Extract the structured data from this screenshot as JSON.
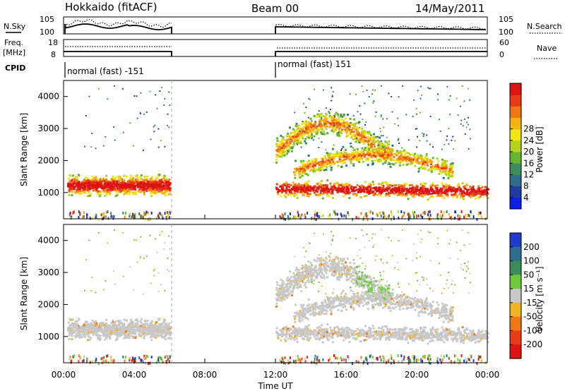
{
  "header": {
    "station": "Hokkaido (fitACF)",
    "beam": "Beam 00",
    "date": "14/May/2011"
  },
  "strip_labels": {
    "nsky": "N.Sky",
    "nsearch": "N.Search",
    "freq_line1": "Freq.",
    "freq_line2": "[MHz]",
    "nave": "Nave",
    "cpid": "CPID",
    "log_hi": "10^5",
    "log_lo": "10^0",
    "freq_hi": "18",
    "freq_lo": "8",
    "nave_hi": "60",
    "nave_lo": "0",
    "cpid_segments": [
      "normal (fast) -151",
      "normal (fast) 151"
    ]
  },
  "chart_data": [
    {
      "type": "heatmap",
      "panel": "power",
      "ylabel": "Slant Range [km]",
      "xlabel": "",
      "ylim": [
        180,
        4500
      ],
      "yticks": [
        1000,
        2000,
        3000,
        4000
      ],
      "colorbar_label": "Power [dB]",
      "colorbar_ticks": [
        "4",
        "8",
        "12",
        "16",
        "20",
        "24",
        "28"
      ],
      "colorbar_colors": [
        "#0a1ee6",
        "#1e3ca0",
        "#2d6e8c",
        "#3c8c5a",
        "#64b432",
        "#b4d21e",
        "#f0e614",
        "#f5b414",
        "#f07814",
        "#e63c14",
        "#dc1414"
      ]
    },
    {
      "type": "heatmap",
      "panel": "velocity",
      "ylabel": "Slant Range [km]",
      "xlabel": "Time UT",
      "ylim": [
        180,
        4500
      ],
      "yticks": [
        1000,
        2000,
        3000,
        4000
      ],
      "xticks": [
        "00:00",
        "04:00",
        "08:00",
        "12:00",
        "16:00",
        "20:00",
        "00:00"
      ],
      "colorbar_label": "Velocity [m s^-1]",
      "colorbar_ticks": [
        "200",
        "100",
        "50",
        "15",
        "-15",
        "-50",
        "-100",
        "-200"
      ],
      "colorbar_colors": [
        "#1e3cc8",
        "#2d6e8c",
        "#3c8c5a",
        "#6ec83c",
        "#c8c8c8",
        "#f0b428",
        "#f07814",
        "#e63c14",
        "#dc1414"
      ]
    }
  ],
  "echo_bands": [
    {
      "t0": 0.2,
      "t1": 6.0,
      "r_center": 1250,
      "r_width": 380,
      "kind": "strong"
    },
    {
      "t0": 12.0,
      "t1": 24.0,
      "r_center": 1150,
      "r_width": 320,
      "kind": "strong"
    },
    {
      "t0": 12.0,
      "t1": 18.5,
      "r_center": 2700,
      "r_width": 500,
      "kind": "arc"
    },
    {
      "t0": 13.0,
      "t1": 22.0,
      "r_center": 1900,
      "r_width": 380,
      "kind": "mid"
    }
  ]
}
